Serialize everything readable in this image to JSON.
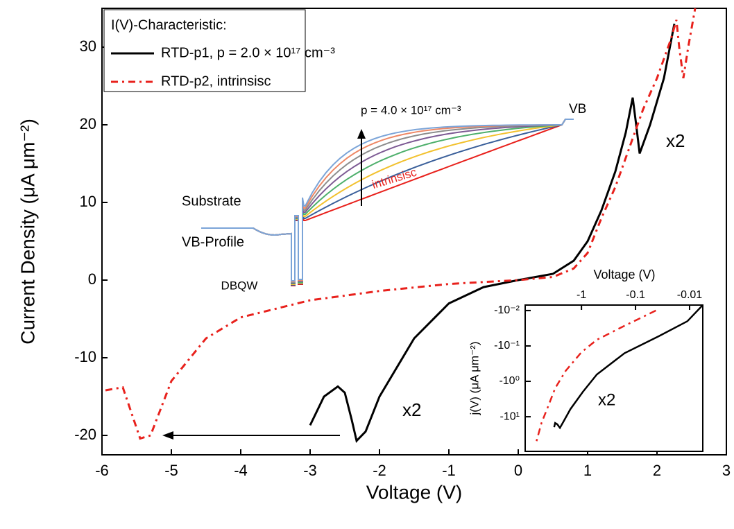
{
  "chart_data": [
    {
      "type": "line",
      "xlabel": "Voltage (V)",
      "ylabel": "Current Density (μA μm⁻²)",
      "legend_title": "I(V)-Characteristic:",
      "legend": "upper left",
      "xlim": [
        -6,
        3
      ],
      "ylim": [
        -22.5,
        35
      ],
      "xticks": [
        -6,
        -5,
        -4,
        -3,
        -2,
        -1,
        0,
        1,
        2,
        3
      ],
      "yticks": [
        -20,
        -10,
        0,
        10,
        20,
        30
      ],
      "annotations": [
        "x2",
        "x2",
        "Substrate",
        "VB-Profile",
        "DBQW",
        "VB",
        "p = 4.0 × 10¹⁷ cm⁻³",
        "intrinsisc"
      ],
      "series": [
        {
          "name": "RTD-p1, p = 2.0 × 10¹⁷ cm⁻³",
          "color": "#000000",
          "dash": false,
          "x": [
            -3,
            -2.8,
            -2.6,
            -2.5,
            -2.4,
            -2.33,
            -2.2,
            -2,
            -1.5,
            -1,
            -0.5,
            0,
            0.5,
            0.8,
            1,
            1.2,
            1.4,
            1.55,
            1.65,
            1.7,
            1.75,
            1.9,
            2.1,
            2.25
          ],
          "values": [
            -18.7,
            -15,
            -13.7,
            -14.5,
            -18,
            -20.7,
            -19.5,
            -15,
            -7.5,
            -3,
            -0.9,
            0,
            0.8,
            2.5,
            5,
            9,
            14,
            19,
            23.5,
            20,
            16.3,
            20,
            26,
            33
          ]
        },
        {
          "name": "RTD-p2, intrinsisc",
          "color": "#e8211c",
          "dash": true,
          "x": [
            -5.95,
            -5.7,
            -5.45,
            -5.3,
            -5,
            -4.5,
            -4,
            -3,
            -2,
            -1,
            0,
            0.5,
            0.8,
            1,
            1.2,
            1.4,
            1.6,
            1.8,
            2,
            2.2,
            2.28,
            2.32,
            2.38,
            2.45,
            2.55
          ],
          "values": [
            -14.2,
            -13.8,
            -20.4,
            -20,
            -13,
            -7.5,
            -4.8,
            -2.6,
            -1.4,
            -0.5,
            0,
            0.4,
            1.5,
            3.5,
            8,
            12,
            17,
            22,
            26,
            31,
            33.5,
            30,
            26,
            30,
            35
          ]
        }
      ]
    },
    {
      "type": "line",
      "xlabel": "Voltage (V)",
      "ylabel": "j(V) (μA μm⁻²)",
      "xscale": "log",
      "yscale": "log",
      "xlim": [
        -11,
        -0.0057
      ],
      "ylim": [
        -95,
        -0.007
      ],
      "xticks": [
        -1,
        -0.1,
        -0.01
      ],
      "yticks": [
        {
          "value": -0.01,
          "label": "-10⁻²"
        },
        {
          "value": -0.1,
          "label": "-10⁻¹"
        },
        {
          "value": -1,
          "label": "-10⁰"
        },
        {
          "value": -10,
          "label": "-10¹"
        }
      ],
      "annotations": [
        "x2"
      ],
      "series": [
        {
          "color": "#000000",
          "dash": false,
          "x": [
            -0.0057,
            -0.011,
            -0.037,
            -0.16,
            -0.52,
            -0.94,
            -1.6,
            -2.15,
            -2.5,
            -2.8,
            -3.07,
            -3.2
          ],
          "values": [
            -0.007,
            -0.02,
            -0.053,
            -0.16,
            -0.64,
            -1.97,
            -6.1,
            -13.7,
            -20.6,
            -16.4,
            -15,
            -19.7
          ]
        },
        {
          "color": "#e8211c",
          "dash": true,
          "x": [
            -0.042,
            -0.16,
            -0.52,
            -1,
            -1.97,
            -3.07,
            -4.1,
            -5.5,
            -7
          ],
          "values": [
            -0.01,
            -0.027,
            -0.067,
            -0.15,
            -0.51,
            -1.57,
            -4.9,
            -15,
            -58
          ]
        }
      ]
    }
  ]
}
